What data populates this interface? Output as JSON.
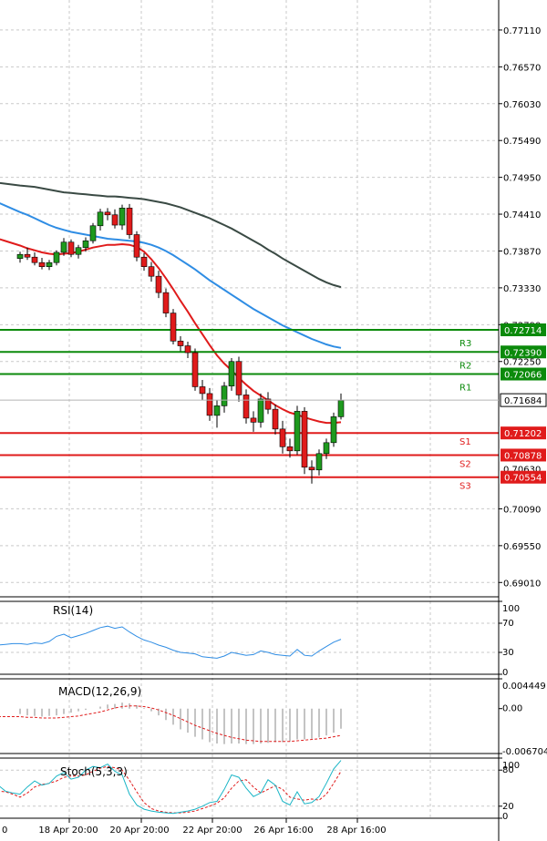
{
  "colors": {
    "up": "#1e9a1e",
    "down": "#e01b1b",
    "ma_fast": "#e01b1b",
    "ma_mid": "#2f8de4",
    "ma_slow": "#3a4a44",
    "resistance": "#0b8a0b",
    "support": "#e01b1b",
    "grid": "#c9c9c9",
    "rsi": "#2f8de4",
    "macd_signal": "#e01b1b",
    "macd_hist": "#8a8a8a",
    "stoch_main": "#19b5c6",
    "stoch_signal": "#e01b1b"
  },
  "chart_data": [
    {
      "type": "candlestick",
      "ylim": [
        0.688,
        0.7755
      ],
      "y_ticks": [
        "0.77110",
        "0.76570",
        "0.76030",
        "0.75490",
        "0.74950",
        "0.74410",
        "0.73870",
        "0.73330",
        "0.72790",
        "0.72250",
        "0.70090",
        "0.69550",
        "0.69010"
      ],
      "x_ticks": [
        "0",
        "18 Apr 20:00",
        "20 Apr 20:00",
        "22 Apr 20:00",
        "26 Apr 16:00",
        "28 Apr 16:00"
      ],
      "current_price": "0.71684",
      "levels": [
        {
          "name": "R3",
          "value": 0.72714,
          "label": "0.72714",
          "kind": "resistance"
        },
        {
          "name": "R2",
          "value": 0.7239,
          "label": "0.72390",
          "kind": "resistance"
        },
        {
          "name": "R1",
          "value": 0.72066,
          "label": "0.72066",
          "kind": "resistance"
        },
        {
          "name": "S1",
          "value": 0.71202,
          "label": "0.71202",
          "kind": "support"
        },
        {
          "name": "S2",
          "value": 0.70878,
          "label": "0.70878",
          "kind": "support"
        },
        {
          "name": "S3",
          "value": 0.70554,
          "label": "0.70554",
          "kind": "support"
        }
      ],
      "candles": [
        [
          0.7376,
          0.7386,
          0.737,
          0.7382
        ],
        [
          0.7382,
          0.7392,
          0.7374,
          0.7378
        ],
        [
          0.7378,
          0.7385,
          0.7366,
          0.737
        ],
        [
          0.737,
          0.7377,
          0.736,
          0.7364
        ],
        [
          0.7364,
          0.7374,
          0.7359,
          0.737
        ],
        [
          0.737,
          0.7388,
          0.7366,
          0.7385
        ],
        [
          0.7385,
          0.7406,
          0.738,
          0.74
        ],
        [
          0.74,
          0.7404,
          0.7378,
          0.7382
        ],
        [
          0.7382,
          0.7396,
          0.7376,
          0.7392
        ],
        [
          0.7392,
          0.7407,
          0.7386,
          0.7402
        ],
        [
          0.7402,
          0.7428,
          0.7398,
          0.7424
        ],
        [
          0.7424,
          0.7449,
          0.7417,
          0.7444
        ],
        [
          0.7444,
          0.745,
          0.7432,
          0.744
        ],
        [
          0.744,
          0.7448,
          0.742,
          0.7425
        ],
        [
          0.7425,
          0.7455,
          0.7418,
          0.745
        ],
        [
          0.745,
          0.7456,
          0.7405,
          0.7411
        ],
        [
          0.7411,
          0.7416,
          0.7372,
          0.7378
        ],
        [
          0.7378,
          0.7384,
          0.7358,
          0.7364
        ],
        [
          0.7364,
          0.7371,
          0.7342,
          0.735
        ],
        [
          0.735,
          0.7358,
          0.7318,
          0.7326
        ],
        [
          0.7326,
          0.7332,
          0.729,
          0.7296
        ],
        [
          0.7296,
          0.7302,
          0.725,
          0.7255
        ],
        [
          0.7255,
          0.7262,
          0.724,
          0.7248
        ],
        [
          0.7248,
          0.7254,
          0.723,
          0.7238
        ],
        [
          0.7238,
          0.7244,
          0.7182,
          0.7188
        ],
        [
          0.7188,
          0.7198,
          0.7168,
          0.7178
        ],
        [
          0.7178,
          0.7186,
          0.7138,
          0.7146
        ],
        [
          0.7146,
          0.7168,
          0.7128,
          0.716
        ],
        [
          0.716,
          0.7195,
          0.715,
          0.7189
        ],
        [
          0.7189,
          0.723,
          0.7182,
          0.7225
        ],
        [
          0.7225,
          0.7232,
          0.7166,
          0.7176
        ],
        [
          0.7176,
          0.7184,
          0.7134,
          0.7142
        ],
        [
          0.7142,
          0.7152,
          0.7122,
          0.7136
        ],
        [
          0.7136,
          0.7178,
          0.7128,
          0.717
        ],
        [
          0.717,
          0.718,
          0.7148,
          0.7155
        ],
        [
          0.7155,
          0.7162,
          0.7118,
          0.7126
        ],
        [
          0.7126,
          0.7138,
          0.709,
          0.71
        ],
        [
          0.71,
          0.7112,
          0.7084,
          0.7094
        ],
        [
          0.7094,
          0.716,
          0.7088,
          0.7152
        ],
        [
          0.7152,
          0.7158,
          0.706,
          0.707
        ],
        [
          0.707,
          0.708,
          0.7046,
          0.7066
        ],
        [
          0.7066,
          0.7096,
          0.7058,
          0.709
        ],
        [
          0.709,
          0.7112,
          0.7082,
          0.7106
        ],
        [
          0.7106,
          0.715,
          0.71,
          0.7144
        ],
        [
          0.7144,
          0.7178,
          0.714,
          0.7168
        ]
      ],
      "ma_fast": [
        0.7395,
        0.7391,
        0.7388,
        0.7385,
        0.7383,
        0.7382,
        0.7383,
        0.7384,
        0.7386,
        0.7389,
        0.7392,
        0.7394,
        0.7396,
        0.7396,
        0.7397,
        0.7396,
        0.7393,
        0.7386,
        0.7375,
        0.7362,
        0.7347,
        0.7331,
        0.7314,
        0.7298,
        0.7281,
        0.7265,
        0.7249,
        0.7234,
        0.7222,
        0.7212,
        0.7201,
        0.7191,
        0.7182,
        0.7175,
        0.7168,
        0.7161,
        0.7155,
        0.715,
        0.7147,
        0.7143,
        0.714,
        0.7137,
        0.7135,
        0.7135,
        0.7136
      ],
      "ma_mid": [
        0.7444,
        0.744,
        0.7435,
        0.743,
        0.7425,
        0.7421,
        0.7418,
        0.7415,
        0.7413,
        0.7411,
        0.7409,
        0.7407,
        0.7405,
        0.7404,
        0.7403,
        0.7402,
        0.7401,
        0.7399,
        0.7396,
        0.7392,
        0.7387,
        0.7381,
        0.7374,
        0.7367,
        0.736,
        0.7352,
        0.7344,
        0.7337,
        0.733,
        0.7323,
        0.7316,
        0.7309,
        0.7302,
        0.7296,
        0.729,
        0.7284,
        0.7278,
        0.7273,
        0.7268,
        0.7263,
        0.7258,
        0.7254,
        0.725,
        0.7247,
        0.7245
      ],
      "ma_slow": [
        0.7483,
        0.7482,
        0.7481,
        0.7479,
        0.7477,
        0.7475,
        0.7473,
        0.7472,
        0.7471,
        0.747,
        0.7469,
        0.7468,
        0.7467,
        0.7467,
        0.7466,
        0.7465,
        0.7464,
        0.7463,
        0.7461,
        0.7459,
        0.7457,
        0.7454,
        0.7451,
        0.7447,
        0.7443,
        0.7439,
        0.7435,
        0.743,
        0.7425,
        0.742,
        0.7414,
        0.7408,
        0.7402,
        0.7396,
        0.7389,
        0.7383,
        0.7376,
        0.737,
        0.7364,
        0.7358,
        0.7352,
        0.7346,
        0.7341,
        0.7337,
        0.7334
      ]
    },
    {
      "type": "line",
      "name": "RSI(14)",
      "ylim": [
        0,
        100
      ],
      "y_ticks": [
        "100",
        "70",
        "30",
        "0"
      ],
      "values": [
        42,
        41,
        43,
        42,
        45,
        52,
        55,
        50,
        53,
        56,
        60,
        64,
        66,
        63,
        65,
        58,
        52,
        47,
        44,
        40,
        37,
        33,
        30,
        29,
        28,
        24,
        23,
        22,
        25,
        30,
        28,
        26,
        27,
        32,
        30,
        27,
        26,
        25,
        34,
        26,
        25,
        32,
        38,
        44,
        48
      ]
    },
    {
      "type": "line",
      "name": "MACD(12,26,9)",
      "ylim": [
        -0.006704,
        0.004449
      ],
      "y_ticks": [
        "0.004449",
        "0.00",
        "-0.006704"
      ],
      "hist": [
        -0.0008,
        -0.001,
        -0.0011,
        -0.0012,
        -0.0011,
        -0.001,
        -0.0008,
        -0.0006,
        -0.0004,
        -0.0002,
        0.0,
        0.0003,
        0.0006,
        0.0007,
        0.0009,
        0.0008,
        0.0005,
        0.0001,
        -0.0004,
        -0.001,
        -0.0017,
        -0.0024,
        -0.0031,
        -0.0036,
        -0.0042,
        -0.0046,
        -0.005,
        -0.0052,
        -0.0053,
        -0.0052,
        -0.0052,
        -0.0053,
        -0.0053,
        -0.0052,
        -0.0051,
        -0.005,
        -0.005,
        -0.0049,
        -0.0046,
        -0.0046,
        -0.0045,
        -0.0043,
        -0.004,
        -0.0036,
        -0.003
      ],
      "signal": [
        -0.0012,
        -0.0013,
        -0.0013,
        -0.0014,
        -0.0014,
        -0.0014,
        -0.0013,
        -0.0012,
        -0.0011,
        -0.0009,
        -0.0007,
        -0.0005,
        -0.0002,
        0.0001,
        0.0003,
        0.0004,
        0.0004,
        0.0003,
        0.0001,
        -0.0002,
        -0.0006,
        -0.001,
        -0.0015,
        -0.002,
        -0.0025,
        -0.0029,
        -0.0033,
        -0.0037,
        -0.004,
        -0.0043,
        -0.0045,
        -0.0047,
        -0.0048,
        -0.0049,
        -0.0049,
        -0.0049,
        -0.0049,
        -0.0049,
        -0.0048,
        -0.0047,
        -0.0046,
        -0.0045,
        -0.0044,
        -0.0042,
        -0.004
      ]
    },
    {
      "type": "line",
      "name": "Stoch(5,3,3)",
      "ylim": [
        0,
        100
      ],
      "y_ticks": [
        "100",
        "80",
        "20",
        "0"
      ],
      "main": [
        40,
        52,
        62,
        55,
        58,
        70,
        76,
        65,
        68,
        80,
        86,
        84,
        90,
        78,
        72,
        40,
        22,
        15,
        12,
        10,
        9,
        8,
        10,
        12,
        15,
        20,
        26,
        28,
        48,
        72,
        68,
        50,
        36,
        42,
        64,
        55,
        28,
        22,
        44,
        24,
        26,
        36,
        58,
        82,
        96
      ],
      "signal": [
        35,
        42,
        52,
        56,
        58,
        62,
        68,
        70,
        70,
        72,
        78,
        83,
        86,
        84,
        80,
        63,
        44,
        26,
        16,
        12,
        10,
        9,
        9,
        10,
        12,
        16,
        20,
        25,
        34,
        50,
        62,
        64,
        52,
        42,
        48,
        54,
        48,
        35,
        32,
        30,
        32,
        30,
        40,
        58,
        78
      ]
    }
  ]
}
